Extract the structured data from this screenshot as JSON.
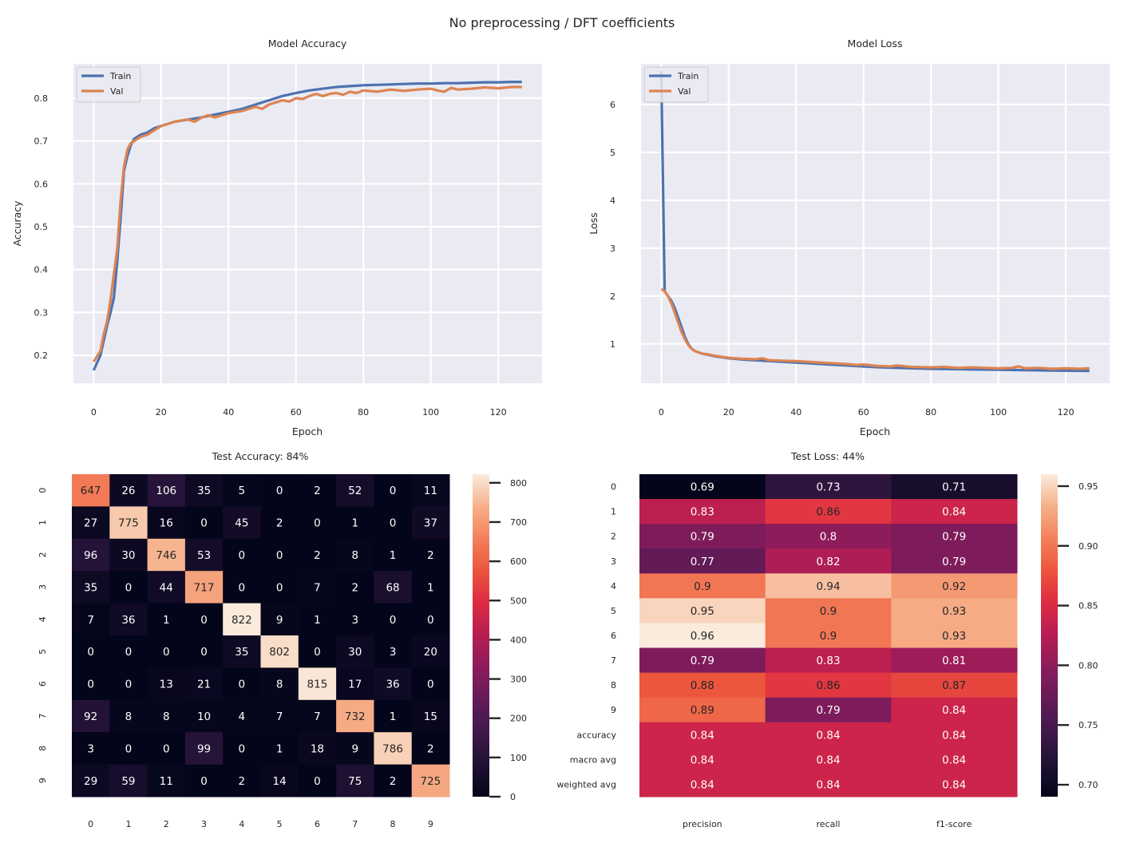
{
  "figure_title": "No preprocessing / DFT coefficients",
  "chart_data": [
    {
      "id": "accuracy",
      "type": "line",
      "title": "Model Accuracy",
      "xlabel": "Epoch",
      "ylabel": "Accuracy",
      "xlim": [
        -6,
        133
      ],
      "ylim": [
        0.135,
        0.88
      ],
      "xticks": [
        0,
        20,
        40,
        60,
        80,
        100,
        120
      ],
      "yticks": [
        0.2,
        0.3,
        0.4,
        0.5,
        0.6,
        0.7,
        0.8
      ],
      "grid": true,
      "legend_position": "top-left",
      "series": [
        {
          "name": "Train",
          "color": "#4c72b0",
          "points": [
            [
              0,
              0.165
            ],
            [
              2,
              0.2
            ],
            [
              4,
              0.27
            ],
            [
              5,
              0.3
            ],
            [
              6,
              0.335
            ],
            [
              7,
              0.42
            ],
            [
              8,
              0.52
            ],
            [
              9,
              0.63
            ],
            [
              10,
              0.665
            ],
            [
              11,
              0.69
            ],
            [
              12,
              0.705
            ],
            [
              14,
              0.715
            ],
            [
              16,
              0.72
            ],
            [
              18,
              0.73
            ],
            [
              20,
              0.735
            ],
            [
              24,
              0.745
            ],
            [
              28,
              0.75
            ],
            [
              32,
              0.755
            ],
            [
              36,
              0.762
            ],
            [
              40,
              0.768
            ],
            [
              44,
              0.775
            ],
            [
              48,
              0.785
            ],
            [
              52,
              0.795
            ],
            [
              56,
              0.805
            ],
            [
              60,
              0.812
            ],
            [
              64,
              0.818
            ],
            [
              68,
              0.822
            ],
            [
              72,
              0.826
            ],
            [
              76,
              0.828
            ],
            [
              80,
              0.83
            ],
            [
              84,
              0.831
            ],
            [
              88,
              0.832
            ],
            [
              92,
              0.833
            ],
            [
              96,
              0.834
            ],
            [
              100,
              0.834
            ],
            [
              104,
              0.835
            ],
            [
              108,
              0.835
            ],
            [
              112,
              0.836
            ],
            [
              116,
              0.837
            ],
            [
              120,
              0.837
            ],
            [
              124,
              0.838
            ],
            [
              127,
              0.838
            ]
          ]
        },
        {
          "name": "Val",
          "color": "#dd8452",
          "points": [
            [
              0,
              0.185
            ],
            [
              2,
              0.21
            ],
            [
              3,
              0.25
            ],
            [
              4,
              0.28
            ],
            [
              5,
              0.33
            ],
            [
              6,
              0.39
            ],
            [
              7,
              0.45
            ],
            [
              8,
              0.56
            ],
            [
              9,
              0.64
            ],
            [
              10,
              0.68
            ],
            [
              11,
              0.695
            ],
            [
              12,
              0.7
            ],
            [
              14,
              0.71
            ],
            [
              16,
              0.715
            ],
            [
              18,
              0.725
            ],
            [
              20,
              0.735
            ],
            [
              22,
              0.74
            ],
            [
              24,
              0.745
            ],
            [
              26,
              0.748
            ],
            [
              28,
              0.75
            ],
            [
              30,
              0.745
            ],
            [
              32,
              0.755
            ],
            [
              34,
              0.76
            ],
            [
              36,
              0.755
            ],
            [
              38,
              0.76
            ],
            [
              40,
              0.765
            ],
            [
              44,
              0.77
            ],
            [
              48,
              0.78
            ],
            [
              50,
              0.775
            ],
            [
              52,
              0.785
            ],
            [
              54,
              0.79
            ],
            [
              56,
              0.795
            ],
            [
              58,
              0.792
            ],
            [
              60,
              0.8
            ],
            [
              62,
              0.798
            ],
            [
              64,
              0.805
            ],
            [
              66,
              0.81
            ],
            [
              68,
              0.805
            ],
            [
              70,
              0.81
            ],
            [
              72,
              0.812
            ],
            [
              74,
              0.808
            ],
            [
              76,
              0.815
            ],
            [
              78,
              0.812
            ],
            [
              80,
              0.818
            ],
            [
              84,
              0.815
            ],
            [
              88,
              0.82
            ],
            [
              92,
              0.817
            ],
            [
              96,
              0.82
            ],
            [
              100,
              0.822
            ],
            [
              102,
              0.818
            ],
            [
              104,
              0.815
            ],
            [
              106,
              0.824
            ],
            [
              108,
              0.82
            ],
            [
              112,
              0.822
            ],
            [
              116,
              0.825
            ],
            [
              120,
              0.823
            ],
            [
              124,
              0.826
            ],
            [
              127,
              0.826
            ]
          ]
        }
      ]
    },
    {
      "id": "loss",
      "type": "line",
      "title": "Model Loss",
      "xlabel": "Epoch",
      "ylabel": "Loss",
      "xlim": [
        -6,
        133
      ],
      "ylim": [
        0.18,
        6.85
      ],
      "xticks": [
        0,
        20,
        40,
        60,
        80,
        100,
        120
      ],
      "yticks": [
        1,
        2,
        3,
        4,
        5,
        6
      ],
      "grid": true,
      "legend_position": "top-left",
      "series": [
        {
          "name": "Train",
          "color": "#4c72b0",
          "points": [
            [
              0,
              6.7
            ],
            [
              1,
              2.1
            ],
            [
              2,
              2.0
            ],
            [
              3,
              1.9
            ],
            [
              4,
              1.75
            ],
            [
              5,
              1.55
            ],
            [
              6,
              1.35
            ],
            [
              7,
              1.15
            ],
            [
              8,
              1.0
            ],
            [
              9,
              0.9
            ],
            [
              10,
              0.85
            ],
            [
              12,
              0.8
            ],
            [
              14,
              0.77
            ],
            [
              16,
              0.74
            ],
            [
              18,
              0.72
            ],
            [
              20,
              0.7
            ],
            [
              25,
              0.67
            ],
            [
              30,
              0.65
            ],
            [
              35,
              0.63
            ],
            [
              40,
              0.61
            ],
            [
              45,
              0.59
            ],
            [
              50,
              0.57
            ],
            [
              55,
              0.55
            ],
            [
              60,
              0.53
            ],
            [
              65,
              0.51
            ],
            [
              70,
              0.5
            ],
            [
              75,
              0.49
            ],
            [
              80,
              0.48
            ],
            [
              85,
              0.475
            ],
            [
              90,
              0.47
            ],
            [
              95,
              0.465
            ],
            [
              100,
              0.46
            ],
            [
              105,
              0.455
            ],
            [
              110,
              0.45
            ],
            [
              115,
              0.445
            ],
            [
              120,
              0.44
            ],
            [
              127,
              0.435
            ]
          ]
        },
        {
          "name": "Val",
          "color": "#dd8452",
          "points": [
            [
              0,
              2.15
            ],
            [
              1,
              2.1
            ],
            [
              2,
              2.0
            ],
            [
              3,
              1.85
            ],
            [
              4,
              1.65
            ],
            [
              5,
              1.45
            ],
            [
              6,
              1.25
            ],
            [
              7,
              1.1
            ],
            [
              8,
              0.98
            ],
            [
              9,
              0.9
            ],
            [
              10,
              0.85
            ],
            [
              12,
              0.8
            ],
            [
              14,
              0.78
            ],
            [
              16,
              0.75
            ],
            [
              18,
              0.73
            ],
            [
              20,
              0.71
            ],
            [
              24,
              0.69
            ],
            [
              28,
              0.68
            ],
            [
              30,
              0.7
            ],
            [
              32,
              0.66
            ],
            [
              36,
              0.65
            ],
            [
              40,
              0.64
            ],
            [
              45,
              0.62
            ],
            [
              50,
              0.6
            ],
            [
              55,
              0.58
            ],
            [
              58,
              0.56
            ],
            [
              60,
              0.57
            ],
            [
              64,
              0.54
            ],
            [
              68,
              0.53
            ],
            [
              70,
              0.55
            ],
            [
              74,
              0.52
            ],
            [
              80,
              0.51
            ],
            [
              84,
              0.52
            ],
            [
              88,
              0.5
            ],
            [
              92,
              0.51
            ],
            [
              96,
              0.5
            ],
            [
              100,
              0.49
            ],
            [
              104,
              0.5
            ],
            [
              106,
              0.53
            ],
            [
              108,
              0.49
            ],
            [
              112,
              0.5
            ],
            [
              116,
              0.48
            ],
            [
              120,
              0.49
            ],
            [
              124,
              0.48
            ],
            [
              127,
              0.49
            ]
          ]
        }
      ]
    },
    {
      "id": "confusion",
      "type": "heatmap",
      "title": "Test Accuracy: 84%",
      "x_labels": [
        "0",
        "1",
        "2",
        "3",
        "4",
        "5",
        "6",
        "7",
        "8",
        "9"
      ],
      "y_labels": [
        "0",
        "1",
        "2",
        "3",
        "4",
        "5",
        "6",
        "7",
        "8",
        "9"
      ],
      "values": [
        [
          647,
          26,
          106,
          35,
          5,
          0,
          2,
          52,
          0,
          11
        ],
        [
          27,
          775,
          16,
          0,
          45,
          2,
          0,
          1,
          0,
          37
        ],
        [
          96,
          30,
          746,
          53,
          0,
          0,
          2,
          8,
          1,
          2
        ],
        [
          35,
          0,
          44,
          717,
          0,
          0,
          7,
          2,
          68,
          1
        ],
        [
          7,
          36,
          1,
          0,
          822,
          9,
          1,
          3,
          0,
          0
        ],
        [
          0,
          0,
          0,
          0,
          35,
          802,
          0,
          30,
          3,
          20
        ],
        [
          0,
          0,
          13,
          21,
          0,
          8,
          815,
          17,
          36,
          0
        ],
        [
          92,
          8,
          8,
          10,
          4,
          7,
          7,
          732,
          1,
          15
        ],
        [
          3,
          0,
          0,
          99,
          0,
          1,
          18,
          9,
          786,
          2
        ],
        [
          29,
          59,
          11,
          0,
          2,
          14,
          0,
          75,
          2,
          725
        ]
      ],
      "vmin": 0,
      "vmax": 822,
      "colorbar_ticks": [
        0,
        100,
        200,
        300,
        400,
        500,
        600,
        700,
        800
      ],
      "colormap": "rocket"
    },
    {
      "id": "report",
      "type": "heatmap",
      "title": "Test Loss: 44%",
      "x_labels": [
        "precision",
        "recall",
        "f1-score"
      ],
      "y_labels": [
        "0",
        "1",
        "2",
        "3",
        "4",
        "5",
        "6",
        "7",
        "8",
        "9",
        "accuracy",
        "macro avg",
        "weighted avg"
      ],
      "values": [
        [
          0.69,
          0.73,
          0.71
        ],
        [
          0.83,
          0.86,
          0.84
        ],
        [
          0.79,
          0.8,
          0.79
        ],
        [
          0.77,
          0.82,
          0.79
        ],
        [
          0.9,
          0.94,
          0.92
        ],
        [
          0.95,
          0.9,
          0.93
        ],
        [
          0.96,
          0.9,
          0.93
        ],
        [
          0.79,
          0.83,
          0.81
        ],
        [
          0.88,
          0.86,
          0.87
        ],
        [
          0.89,
          0.79,
          0.84
        ],
        [
          0.84,
          0.84,
          0.84
        ],
        [
          0.84,
          0.84,
          0.84
        ],
        [
          0.84,
          0.84,
          0.84
        ]
      ],
      "vmin": 0.69,
      "vmax": 0.96,
      "colorbar_ticks": [
        "0.70",
        "0.75",
        "0.80",
        "0.85",
        "0.90",
        "0.95"
      ],
      "colormap": "rocket"
    }
  ]
}
